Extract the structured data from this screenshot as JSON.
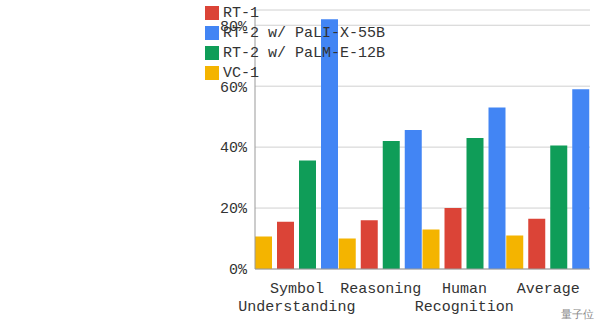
{
  "chart_data": {
    "type": "bar",
    "categories": [
      "Symbol Understanding",
      "Reasoning",
      "Human Recognition",
      "Average"
    ],
    "series": [
      {
        "name": "VC-1",
        "color": "#F4B400",
        "values": [
          10.7,
          10,
          13,
          11
        ]
      },
      {
        "name": "RT-1",
        "color": "#DB4437",
        "values": [
          15.5,
          16,
          20,
          16.5
        ]
      },
      {
        "name": "RT-2 w/ PaLM-E-12B",
        "color": "#0F9D58",
        "values": [
          35.6,
          42,
          43,
          40.5
        ]
      },
      {
        "name": "RT-2 w/ PaLI-X-55B",
        "color": "#4285F4",
        "values": [
          82,
          45.6,
          53,
          59
        ]
      }
    ],
    "ylim": [
      0,
      85
    ],
    "yticks": [
      {
        "value": 0,
        "label": "0%"
      },
      {
        "value": 20,
        "label": "20%"
      },
      {
        "value": 40,
        "label": "40%"
      },
      {
        "value": 60,
        "label": "60%"
      },
      {
        "value": 80,
        "label": "80%"
      }
    ],
    "grid": true,
    "legend": "top",
    "watermark": "量子位"
  }
}
